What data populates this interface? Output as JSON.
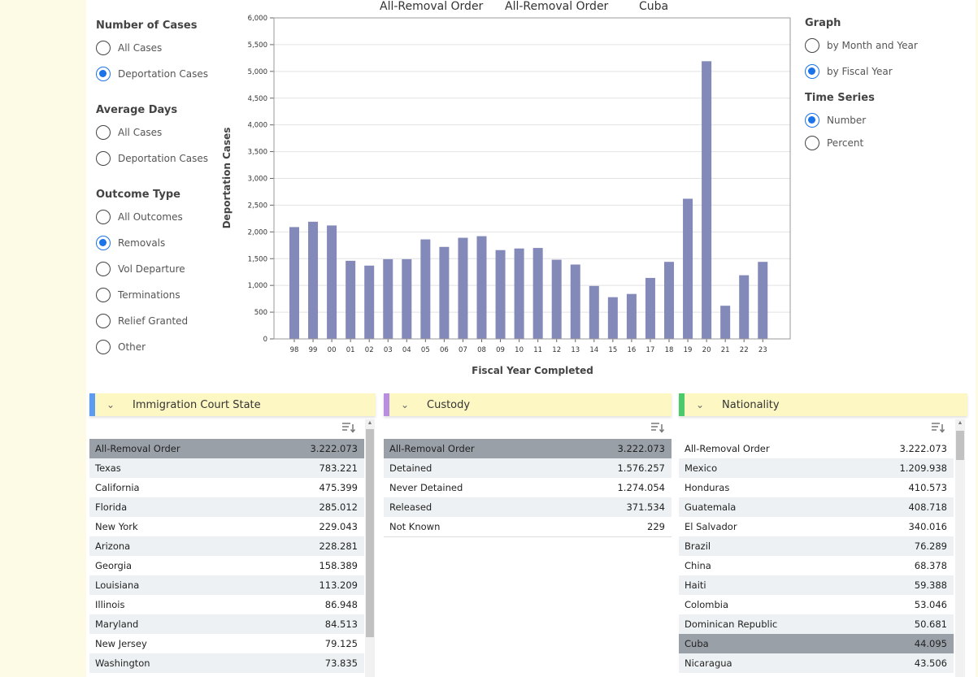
{
  "left_controls": {
    "number_of_cases": {
      "title": "Number of Cases",
      "options": [
        {
          "label": "All Cases",
          "selected": false
        },
        {
          "label": "Deportation Cases",
          "selected": true
        }
      ]
    },
    "average_days": {
      "title": "Average Days",
      "options": [
        {
          "label": "All Cases",
          "selected": false
        },
        {
          "label": "Deportation Cases",
          "selected": false
        }
      ]
    },
    "outcome_type": {
      "title": "Outcome Type",
      "options": [
        {
          "label": "All Outcomes",
          "selected": false
        },
        {
          "label": "Removals",
          "selected": true
        },
        {
          "label": "Vol Departure",
          "selected": false
        },
        {
          "label": "Terminations",
          "selected": false
        },
        {
          "label": "Relief Granted",
          "selected": false
        },
        {
          "label": "Other",
          "selected": false
        }
      ]
    }
  },
  "right_controls": {
    "graph": {
      "title": "Graph",
      "options": [
        {
          "label": "by Month and Year",
          "selected": false
        },
        {
          "label": "by Fiscal Year",
          "selected": true
        }
      ]
    },
    "time_series": {
      "title": "Time Series",
      "options": [
        {
          "label": "Number",
          "selected": true
        },
        {
          "label": "Percent",
          "selected": false
        }
      ]
    }
  },
  "chart_titles": [
    "All-Removal Order",
    "All-Removal Order",
    "Cuba"
  ],
  "chart_data": {
    "type": "bar",
    "categories": [
      "98",
      "99",
      "00",
      "01",
      "02",
      "03",
      "04",
      "05",
      "06",
      "07",
      "08",
      "09",
      "10",
      "11",
      "12",
      "13",
      "14",
      "15",
      "16",
      "17",
      "18",
      "19",
      "20",
      "21",
      "22",
      "23"
    ],
    "values": [
      2090,
      2190,
      2120,
      1460,
      1370,
      1490,
      1490,
      1860,
      1720,
      1890,
      1920,
      1660,
      1690,
      1700,
      1480,
      1390,
      990,
      780,
      840,
      1140,
      1440,
      2620,
      5190,
      620,
      1190,
      1440
    ],
    "xlabel": "Fiscal Year Completed",
    "ylabel": "Deportation Cases",
    "ylim": [
      0,
      6000
    ],
    "yticks": [
      0,
      500,
      1000,
      1500,
      2000,
      2500,
      3000,
      3500,
      4000,
      4500,
      5000,
      5500,
      6000
    ],
    "ytick_labels": [
      "0",
      "500",
      "1,000",
      "1,500",
      "2,000",
      "2,500",
      "3,000",
      "3,500",
      "4,000",
      "4,500",
      "5,000",
      "5,500",
      "6,000"
    ],
    "bar_color": "#8389b8",
    "grid": true
  },
  "tables": [
    {
      "title": "Immigration Court State",
      "accent": "#5b9bf0",
      "rows": [
        {
          "name": "All-Removal Order",
          "value": "3.222.073",
          "selected": true
        },
        {
          "name": "Texas",
          "value": "783.221"
        },
        {
          "name": "California",
          "value": "475.399"
        },
        {
          "name": "Florida",
          "value": "285.012"
        },
        {
          "name": "New York",
          "value": "229.043"
        },
        {
          "name": "Arizona",
          "value": "228.281"
        },
        {
          "name": "Georgia",
          "value": "158.389"
        },
        {
          "name": "Louisiana",
          "value": "113.209"
        },
        {
          "name": "Illinois",
          "value": "86.948"
        },
        {
          "name": "Maryland",
          "value": "84.513"
        },
        {
          "name": "New Jersey",
          "value": "79.125"
        },
        {
          "name": "Washington",
          "value": "73.835"
        }
      ]
    },
    {
      "title": "Custody",
      "accent": "#b88ee0",
      "rows": [
        {
          "name": "All-Removal Order",
          "value": "3.222.073",
          "selected": true
        },
        {
          "name": "Detained",
          "value": "1.576.257"
        },
        {
          "name": "Never Detained",
          "value": "1.274.054"
        },
        {
          "name": "Released",
          "value": "371.534"
        },
        {
          "name": "Not Known",
          "value": "229"
        }
      ]
    },
    {
      "title": "Nationality",
      "accent": "#4cc96a",
      "rows": [
        {
          "name": "All-Removal Order",
          "value": "3.222.073"
        },
        {
          "name": "Mexico",
          "value": "1.209.938"
        },
        {
          "name": "Honduras",
          "value": "410.573"
        },
        {
          "name": "Guatemala",
          "value": "408.718"
        },
        {
          "name": "El Salvador",
          "value": "340.016"
        },
        {
          "name": "Brazil",
          "value": "76.289"
        },
        {
          "name": "China",
          "value": "68.378"
        },
        {
          "name": "Haiti",
          "value": "59.388"
        },
        {
          "name": "Colombia",
          "value": "53.046"
        },
        {
          "name": "Dominican Republic",
          "value": "50.681"
        },
        {
          "name": "Cuba",
          "value": "44.095",
          "selected": true
        },
        {
          "name": "Nicaragua",
          "value": "43.506"
        }
      ]
    }
  ]
}
